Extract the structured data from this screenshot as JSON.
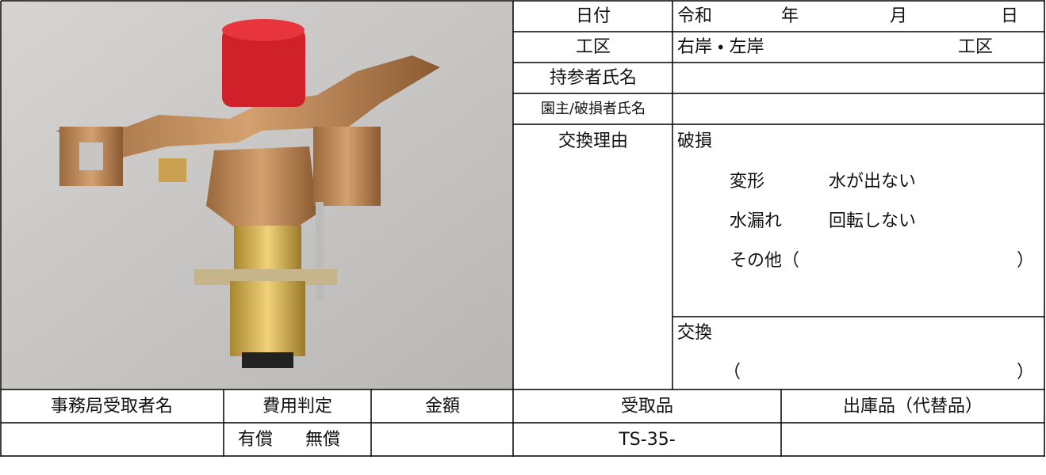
{
  "header_rows": [
    {
      "label": "日付",
      "values": [
        "令和",
        "年",
        "月",
        "日"
      ]
    },
    {
      "label": "工区",
      "values": [
        "右岸 ・ 左岸",
        "工区"
      ]
    },
    {
      "label": "持参者氏名"
    },
    {
      "label": "園主/破損者氏名"
    }
  ],
  "reason": {
    "label": "交換理由",
    "damage": "破損",
    "options": [
      "変形",
      "水が出ない",
      "水漏れ",
      "回転しない"
    ],
    "other": "その他（",
    "other_close": "）",
    "exchange": "交換",
    "exchange_open": "（",
    "exchange_close": "）"
  },
  "footer": {
    "headers": [
      "事務局受取者名",
      "費用判定",
      "金額",
      "受取品",
      "出庫品（代替品）"
    ],
    "paid": "有償",
    "free": "無償",
    "received": "TS-35-"
  }
}
